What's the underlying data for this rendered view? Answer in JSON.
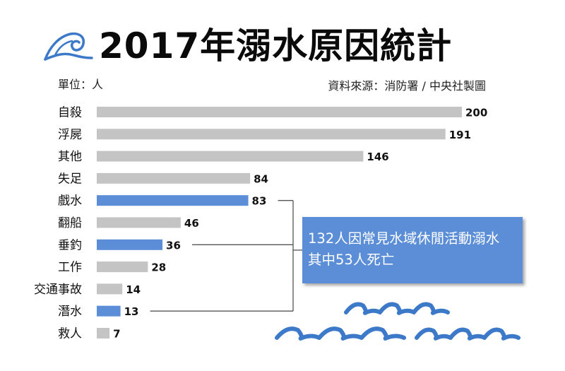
{
  "header": {
    "title": "2017年溺水原因統計",
    "unit": "單位：人",
    "source": "資料來源：消防署 / 中央社製圖"
  },
  "icons": {
    "logo": "wave-icon",
    "decor": "wave-decoration-icon"
  },
  "callout": {
    "line1": "132人因常見水域休閒活動溺水",
    "line2": "其中53人死亡"
  },
  "colors": {
    "gray_bar": "#c4c4c4",
    "blue_bar": "#5b8ed6",
    "connector": "#555555",
    "wave": "#3c7ac9"
  },
  "chart_data": {
    "type": "bar",
    "orientation": "horizontal",
    "title": "2017年溺水原因統計",
    "xlabel": "",
    "ylabel": "單位：人",
    "xlim": [
      0,
      200
    ],
    "categories": [
      "自殺",
      "浮屍",
      "其他",
      "失足",
      "戲水",
      "翻船",
      "垂釣",
      "工作",
      "交通事故",
      "潛水",
      "救人"
    ],
    "values": [
      200,
      191,
      146,
      84,
      83,
      46,
      36,
      28,
      14,
      13,
      7
    ],
    "highlighted": [
      "戲水",
      "垂釣",
      "潛水"
    ],
    "highlight_sum": 132
  }
}
